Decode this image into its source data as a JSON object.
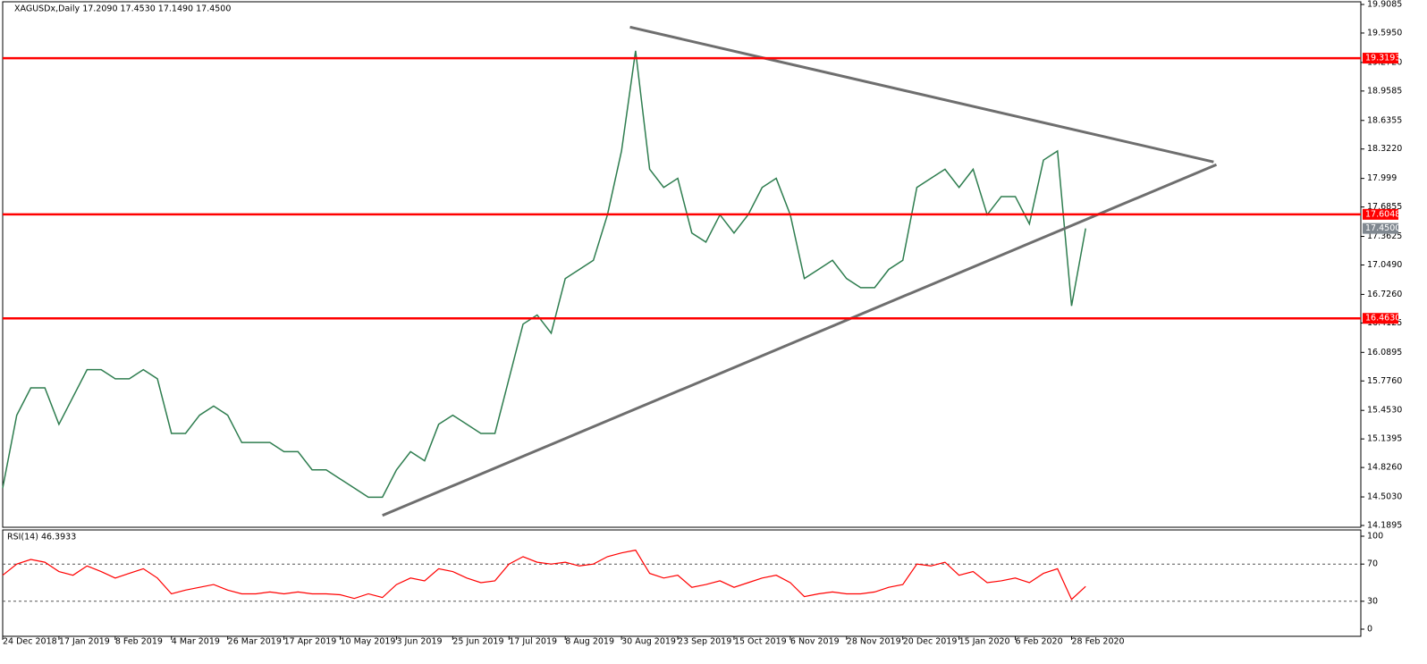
{
  "chart_data": [
    {
      "type": "line",
      "header": "XAGUSDx,Daily  17.2090 17.4530 17.1490 17.4500",
      "categories": [
        "24 Dec 2018",
        null,
        null,
        null,
        "17 Jan 2019",
        null,
        null,
        null,
        "8 Feb 2019",
        null,
        null,
        null,
        "4 Mar 2019",
        null,
        null,
        null,
        "26 Mar 2019",
        null,
        null,
        null,
        "17 Apr 2019",
        null,
        null,
        null,
        "10 May 2019",
        null,
        null,
        null,
        "3 Jun 2019",
        null,
        null,
        null,
        "25 Jun 2019",
        null,
        null,
        null,
        "17 Jul 2019",
        null,
        null,
        null,
        "8 Aug 2019",
        null,
        null,
        null,
        "30 Aug 2019",
        null,
        null,
        null,
        "23 Sep 2019",
        null,
        null,
        null,
        "15 Oct 2019",
        null,
        null,
        null,
        "6 Nov 2019",
        null,
        null,
        null,
        "28 Nov 2019",
        null,
        null,
        null,
        "20 Dec 2019",
        null,
        null,
        null,
        "15 Jan 2020",
        null,
        null,
        null,
        "6 Feb 2020",
        null,
        null,
        null,
        "28 Feb 2020",
        null
      ],
      "series": [
        {
          "name": "XAGUSDx",
          "color": "#2e7d4f",
          "values": [
            14.6,
            15.4,
            15.7,
            15.7,
            15.3,
            15.6,
            15.9,
            15.9,
            15.8,
            15.8,
            15.9,
            15.8,
            15.2,
            15.2,
            15.4,
            15.5,
            15.4,
            15.1,
            15.1,
            15.1,
            15.0,
            15.0,
            14.8,
            14.8,
            14.7,
            14.6,
            14.5,
            14.5,
            14.8,
            15.0,
            14.9,
            15.3,
            15.4,
            15.3,
            15.2,
            15.2,
            15.8,
            16.4,
            16.5,
            16.3,
            16.9,
            17.0,
            17.1,
            17.6,
            18.3,
            19.4,
            18.1,
            17.9,
            18.0,
            17.4,
            17.3,
            17.6,
            17.4,
            17.6,
            17.9,
            18.0,
            17.6,
            16.9,
            17.0,
            17.1,
            16.9,
            16.8,
            16.8,
            17.0,
            17.1,
            17.9,
            18.0,
            18.1,
            17.9,
            18.1,
            17.6,
            17.8,
            17.8,
            17.5,
            18.2,
            18.3,
            16.6,
            17.45
          ]
        }
      ],
      "ylim": [
        14.1895,
        19.9085
      ],
      "yticks": [
        19.9085,
        {
          "value": 19.595,
          "label": "19.5950"
        },
        {
          "value": 19.272,
          "label": "19.2720"
        },
        18.9585,
        18.6355,
        {
          "value": 18.322,
          "label": "18.3220"
        },
        17.999,
        17.6855,
        17.3625,
        {
          "value": 17.049,
          "label": "17.0490"
        },
        {
          "value": 16.726,
          "label": "16.7260"
        },
        16.4125,
        16.0895,
        {
          "value": 15.776,
          "label": "15.7760"
        },
        {
          "value": 15.453,
          "label": "15.4530"
        },
        15.1395,
        {
          "value": 14.826,
          "label": "14.8260"
        },
        {
          "value": 14.503,
          "label": "14.5030"
        },
        14.1895
      ],
      "levels": [
        {
          "value": 19.3193,
          "color": "#ff0000"
        },
        {
          "value": 17.6048,
          "color": "#ff0000"
        },
        {
          "value": 16.463,
          "label": "16.4630",
          "color": "#ff0000"
        }
      ],
      "current": {
        "value": 17.45,
        "label": "17.4500",
        "color": "#808890"
      },
      "trendlines": [
        {
          "x": [
            44.6,
            86.1
          ],
          "y": [
            19.66,
            18.18
          ],
          "color": "#6e6e6e"
        },
        {
          "x": [
            27.0,
            86.3
          ],
          "y": [
            14.3,
            18.15
          ],
          "color": "#6e6e6e"
        }
      ]
    },
    {
      "type": "line",
      "title": "RSI(14) 46.3933",
      "series": [
        {
          "name": "RSI(14)",
          "color": "#ff0000",
          "values": [
            58,
            70,
            75,
            72,
            62,
            58,
            68,
            62,
            55,
            60,
            65,
            55,
            38,
            42,
            45,
            48,
            42,
            38,
            38,
            40,
            38,
            40,
            38,
            38,
            37,
            33,
            38,
            34,
            48,
            55,
            52,
            65,
            62,
            55,
            50,
            52,
            70,
            78,
            72,
            70,
            72,
            68,
            70,
            78,
            82,
            85,
            60,
            55,
            58,
            45,
            48,
            52,
            45,
            50,
            55,
            58,
            50,
            35,
            38,
            40,
            38,
            38,
            40,
            45,
            48,
            70,
            68,
            72,
            58,
            62,
            50,
            52,
            55,
            50,
            60,
            65,
            32,
            46
          ]
        }
      ],
      "ylim": [
        0,
        100
      ],
      "yticks": [
        100,
        70,
        30,
        0
      ],
      "levels": [
        70,
        30
      ]
    }
  ]
}
